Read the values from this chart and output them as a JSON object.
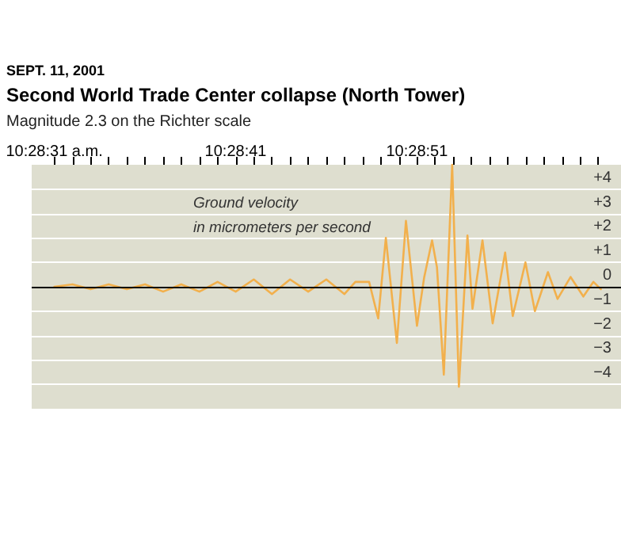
{
  "chart_data": {
    "type": "line",
    "title": "Second World Trade Center collapse (North Tower)",
    "subtitle": "Magnitude 2.3 on the Richter scale",
    "annotations": [
      "SEPT. 11, 2001"
    ],
    "ylabel": "Ground velocity\nin micrometers per second",
    "x": [
      10.475278,
      10.475556,
      10.475833,
      10.476111,
      10.476389,
      10.476667,
      10.476944,
      10.477222,
      10.4775,
      10.477778,
      10.478056,
      10.478333,
      10.478611,
      10.478889,
      10.479167,
      10.479444,
      10.479722,
      10.479889,
      10.4801,
      10.480239,
      10.480356,
      10.480525,
      10.480664,
      10.480833,
      10.480944,
      10.481064,
      10.481139,
      10.481244,
      10.481372,
      10.481475,
      10.481606,
      10.481683,
      10.481836,
      10.481992,
      10.482183,
      10.4823,
      10.482494,
      10.482639,
      10.482839,
      10.482986,
      10.483186,
      10.483381,
      10.483536,
      10.48365
    ],
    "series": [
      {
        "color": "#f2b04c",
        "values": [
          0,
          0.1,
          -0.1,
          0.1,
          -0.1,
          0.1,
          -0.2,
          0.1,
          -0.2,
          0.2,
          -0.2,
          0.3,
          -0.3,
          0.3,
          -0.2,
          0.3,
          -0.3,
          0.2,
          0.2,
          -1.3,
          2.0,
          -2.3,
          2.7,
          -1.6,
          0.4,
          1.9,
          0.8,
          -3.6,
          5.0,
          -4.1,
          2.1,
          -0.9,
          1.9,
          -1.5,
          1.4,
          -1.2,
          1.0,
          -1.0,
          0.6,
          -0.5,
          0.4,
          -0.4,
          0.2,
          -0.1
        ]
      }
    ],
    "xlim": [
      10.474931,
      10.483958
    ],
    "xticks": [
      {
        "value": 10.475278,
        "label": "10:28:31 a.m."
      },
      {
        "value": 10.475556,
        "label": null
      },
      {
        "value": 10.475833,
        "label": null
      },
      {
        "value": 10.476111,
        "label": null
      },
      {
        "value": 10.476389,
        "label": null
      },
      {
        "value": 10.476667,
        "label": null
      },
      {
        "value": 10.476944,
        "label": null
      },
      {
        "value": 10.477222,
        "label": null
      },
      {
        "value": 10.4775,
        "label": null
      },
      {
        "value": 10.477778,
        "label": null
      },
      {
        "value": 10.478056,
        "label": "10:28:41"
      },
      {
        "value": 10.478333,
        "label": null
      },
      {
        "value": 10.478611,
        "label": null
      },
      {
        "value": 10.478889,
        "label": null
      },
      {
        "value": 10.479167,
        "label": null
      },
      {
        "value": 10.479444,
        "label": null
      },
      {
        "value": 10.479722,
        "label": null
      },
      {
        "value": 10.48,
        "label": null
      },
      {
        "value": 10.480278,
        "label": null
      },
      {
        "value": 10.480556,
        "label": null
      },
      {
        "value": 10.480833,
        "label": "10:28:51"
      },
      {
        "value": 10.481111,
        "label": null
      },
      {
        "value": 10.481389,
        "label": null
      },
      {
        "value": 10.481667,
        "label": null
      },
      {
        "value": 10.481944,
        "label": null
      },
      {
        "value": 10.482222,
        "label": null
      },
      {
        "value": 10.4825,
        "label": null
      },
      {
        "value": 10.482778,
        "label": null
      },
      {
        "value": 10.483056,
        "label": null
      },
      {
        "value": 10.483333,
        "label": null
      },
      {
        "value": 10.483611,
        "label": null
      }
    ],
    "ylim": [
      -5,
      5
    ],
    "yticks": [
      {
        "value": 4,
        "label": "+4"
      },
      {
        "value": 3,
        "label": "+3"
      },
      {
        "value": 2,
        "label": "+2"
      },
      {
        "value": 1,
        "label": "+1"
      },
      0,
      {
        "value": -1,
        "label": "−1"
      },
      {
        "value": -2,
        "label": "−2"
      },
      {
        "value": -3,
        "label": "−3"
      },
      {
        "value": -4,
        "label": "−4"
      }
    ],
    "ref_lines": [
      {
        "axis": "y",
        "value": 0,
        "color": "#000000"
      }
    ],
    "grid": "y",
    "marker": "none",
    "line_style": "solid"
  }
}
